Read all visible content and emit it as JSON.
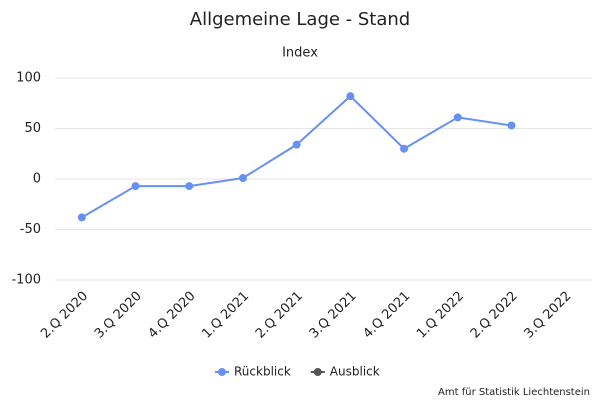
{
  "chart_data": {
    "type": "line",
    "title": "Allgemeine Lage - Stand",
    "subtitle": "Index",
    "categories": [
      "2.Q 2020",
      "3.Q 2020",
      "4.Q 2020",
      "1.Q 2021",
      "2.Q 2021",
      "3.Q 2021",
      "4.Q 2021",
      "1.Q 2022",
      "2.Q 2022",
      "3.Q 2022"
    ],
    "series": [
      {
        "name": "Rückblick",
        "color": "#6790f5",
        "values": [
          -38,
          -7,
          -7,
          1,
          34,
          82,
          30,
          61,
          53,
          null
        ]
      },
      {
        "name": "Ausblick",
        "color": "#555555",
        "values": [
          null,
          null,
          null,
          null,
          null,
          null,
          null,
          null,
          null,
          null
        ]
      }
    ],
    "ylim": [
      -100,
      100
    ],
    "yticks": [
      -100,
      -50,
      0,
      50,
      100
    ],
    "grid": true,
    "credit": "Amt für Statistik Liechtenstein"
  }
}
